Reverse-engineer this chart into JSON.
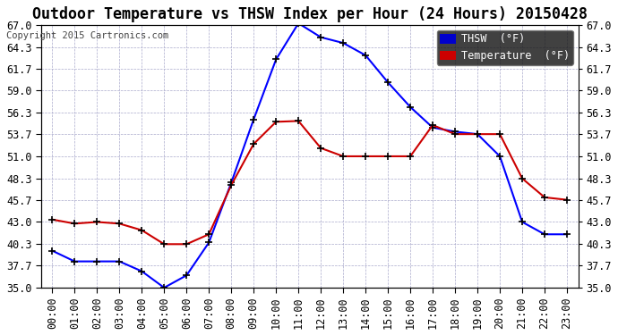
{
  "title": "Outdoor Temperature vs THSW Index per Hour (24 Hours) 20150428",
  "copyright": "Copyright 2015 Cartronics.com",
  "hours": [
    "00:00",
    "01:00",
    "02:00",
    "03:00",
    "04:00",
    "05:00",
    "06:00",
    "07:00",
    "08:00",
    "09:00",
    "10:00",
    "11:00",
    "12:00",
    "13:00",
    "14:00",
    "15:00",
    "16:00",
    "17:00",
    "18:00",
    "19:00",
    "20:00",
    "21:00",
    "22:00",
    "23:00"
  ],
  "thsw": [
    39.5,
    38.2,
    38.2,
    38.2,
    37.0,
    35.0,
    36.5,
    40.5,
    47.8,
    55.5,
    62.8,
    67.2,
    65.5,
    64.8,
    63.3,
    60.0,
    57.0,
    54.5,
    54.0,
    53.7,
    51.0,
    43.0,
    41.5,
    41.5
  ],
  "temperature": [
    43.3,
    42.8,
    43.0,
    42.8,
    42.0,
    40.3,
    40.3,
    41.5,
    47.5,
    52.5,
    55.2,
    55.3,
    52.0,
    51.0,
    51.0,
    51.0,
    51.0,
    54.8,
    53.7,
    53.7,
    53.7,
    48.3,
    46.0,
    45.7
  ],
  "thsw_color": "#0000ff",
  "temp_color": "#cc0000",
  "marker_color": "#000000",
  "bg_color": "#ffffff",
  "grid_color": "#aaaacc",
  "ylim": [
    35.0,
    67.0
  ],
  "yticks": [
    35.0,
    37.7,
    40.3,
    43.0,
    45.7,
    48.3,
    51.0,
    53.7,
    56.3,
    59.0,
    61.7,
    64.3,
    67.0
  ],
  "legend_thsw_bg": "#0000cc",
  "legend_temp_bg": "#cc0000",
  "title_fontsize": 12,
  "copyright_fontsize": 7.5,
  "tick_fontsize": 8.5,
  "legend_fontsize": 8.5
}
